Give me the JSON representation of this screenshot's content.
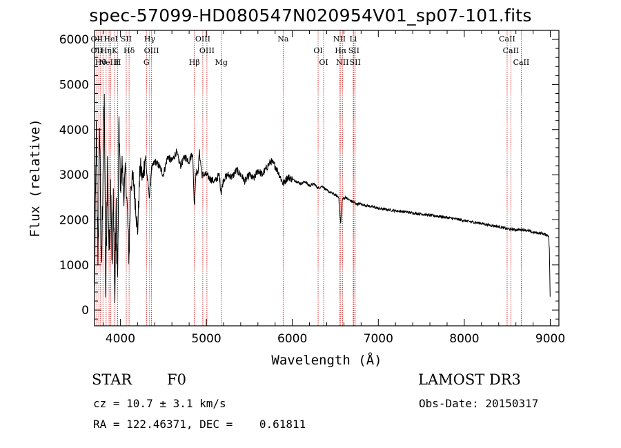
{
  "header": {
    "title": "spec-57099-HD080547N020954V01_sp07-101.fits"
  },
  "info": {
    "class": "STAR",
    "subclass": "F0",
    "survey": "LAMOST DR3",
    "cz": "cz = 10.7 ± 3.1 km/s",
    "obs_date": "Obs-Date: 20150317",
    "coords": "RA = 122.46371, DEC =    0.61811"
  },
  "colors": {
    "axis": "#000000",
    "spectrum": "#000000",
    "line_marker": "#cc0000"
  },
  "chart_data": {
    "type": "line",
    "title": "spec-57099-HD080547N020954V01_sp07-101.fits",
    "xlabel": "Wavelength (Å)",
    "ylabel": "Flux (relative)",
    "xlim": [
      3700,
      9100
    ],
    "ylim": [
      -350,
      6200
    ],
    "xticks": [
      4000,
      5000,
      6000,
      7000,
      8000,
      9000
    ],
    "yticks": [
      0,
      1000,
      2000,
      3000,
      4000,
      5000,
      6000
    ],
    "series": [
      {
        "name": "flux",
        "points": [
          [
            3700,
            300
          ],
          [
            3720,
            3900
          ],
          [
            3740,
            1200
          ],
          [
            3760,
            4100
          ],
          [
            3780,
            600
          ],
          [
            3800,
            3300
          ],
          [
            3815,
            4600
          ],
          [
            3830,
            200
          ],
          [
            3850,
            3200
          ],
          [
            3870,
            1200
          ],
          [
            3890,
            3100
          ],
          [
            3905,
            800
          ],
          [
            3920,
            2600
          ],
          [
            3935,
            100
          ],
          [
            3950,
            2200
          ],
          [
            3970,
            600
          ],
          [
            3985,
            4300
          ],
          [
            4000,
            2600
          ],
          [
            4020,
            3300
          ],
          [
            4040,
            2500
          ],
          [
            4060,
            3100
          ],
          [
            4080,
            2300
          ],
          [
            4101,
            1100
          ],
          [
            4120,
            2800
          ],
          [
            4150,
            2900
          ],
          [
            4180,
            2300
          ],
          [
            4200,
            1700
          ],
          [
            4230,
            3200
          ],
          [
            4260,
            2900
          ],
          [
            4290,
            3400
          ],
          [
            4320,
            2800
          ],
          [
            4340,
            2500
          ],
          [
            4360,
            3100
          ],
          [
            4400,
            3300
          ],
          [
            4450,
            3200
          ],
          [
            4500,
            3000
          ],
          [
            4550,
            3400
          ],
          [
            4600,
            3300
          ],
          [
            4650,
            3500
          ],
          [
            4700,
            3200
          ],
          [
            4750,
            3400
          ],
          [
            4800,
            3300
          ],
          [
            4840,
            3500
          ],
          [
            4861,
            2300
          ],
          [
            4880,
            3100
          ],
          [
            4900,
            3000
          ],
          [
            4920,
            3500
          ],
          [
            4950,
            3000
          ],
          [
            5000,
            3000
          ],
          [
            5050,
            2900
          ],
          [
            5100,
            2850
          ],
          [
            5150,
            3000
          ],
          [
            5172,
            2600
          ],
          [
            5200,
            2900
          ],
          [
            5250,
            3000
          ],
          [
            5300,
            2950
          ],
          [
            5350,
            3100
          ],
          [
            5400,
            3000
          ],
          [
            5450,
            2850
          ],
          [
            5500,
            3000
          ],
          [
            5550,
            2900
          ],
          [
            5600,
            3100
          ],
          [
            5650,
            3000
          ],
          [
            5700,
            3150
          ],
          [
            5750,
            3300
          ],
          [
            5800,
            3200
          ],
          [
            5850,
            3000
          ],
          [
            5893,
            2800
          ],
          [
            5950,
            2950
          ],
          [
            6000,
            2900
          ],
          [
            6050,
            2850
          ],
          [
            6100,
            2800
          ],
          [
            6150,
            2850
          ],
          [
            6200,
            2750
          ],
          [
            6250,
            2800
          ],
          [
            6300,
            2700
          ],
          [
            6350,
            2750
          ],
          [
            6400,
            2650
          ],
          [
            6450,
            2600
          ],
          [
            6500,
            2550
          ],
          [
            6540,
            2500
          ],
          [
            6563,
            1900
          ],
          [
            6580,
            2450
          ],
          [
            6620,
            2500
          ],
          [
            6650,
            2450
          ],
          [
            6700,
            2400
          ],
          [
            6750,
            2350
          ],
          [
            6800,
            2350
          ],
          [
            6850,
            2320
          ],
          [
            6900,
            2300
          ],
          [
            6950,
            2280
          ],
          [
            7000,
            2250
          ],
          [
            7100,
            2230
          ],
          [
            7200,
            2200
          ],
          [
            7300,
            2180
          ],
          [
            7400,
            2150
          ],
          [
            7500,
            2130
          ],
          [
            7600,
            2100
          ],
          [
            7700,
            2080
          ],
          [
            7800,
            2050
          ],
          [
            7900,
            2020
          ],
          [
            8000,
            1980
          ],
          [
            8100,
            1950
          ],
          [
            8200,
            1920
          ],
          [
            8300,
            1880
          ],
          [
            8400,
            1850
          ],
          [
            8500,
            1800
          ],
          [
            8600,
            1780
          ],
          [
            8700,
            1780
          ],
          [
            8800,
            1720
          ],
          [
            8900,
            1700
          ],
          [
            8980,
            1650
          ],
          [
            8990,
            1300
          ],
          [
            9000,
            20
          ]
        ]
      }
    ],
    "line_markers": [
      {
        "wavelength": 3727,
        "labels": [
          "OII",
          "OII"
        ]
      },
      {
        "wavelength": 3750,
        "labels": [
          ""
        ]
      },
      {
        "wavelength": 3771,
        "labels": [
          "Hθ"
        ]
      },
      {
        "wavelength": 3798,
        "labels": [
          ""
        ]
      },
      {
        "wavelength": 3835,
        "labels": [
          "Hη"
        ]
      },
      {
        "wavelength": 3869,
        "labels": [
          "NeIII"
        ]
      },
      {
        "wavelength": 3889,
        "labels": [
          "HeI"
        ]
      },
      {
        "wavelength": 3934,
        "labels": [
          "K"
        ]
      },
      {
        "wavelength": 3969,
        "labels": [
          "H"
        ]
      },
      {
        "wavelength": 4069,
        "labels": [
          "SII"
        ]
      },
      {
        "wavelength": 4102,
        "labels": [
          "Hδ"
        ]
      },
      {
        "wavelength": 4304,
        "labels": [
          "G"
        ]
      },
      {
        "wavelength": 4341,
        "labels": [
          "Hγ"
        ]
      },
      {
        "wavelength": 4363,
        "labels": [
          "OIII"
        ]
      },
      {
        "wavelength": 4861,
        "labels": [
          "Hβ"
        ]
      },
      {
        "wavelength": 4959,
        "labels": [
          "OIII"
        ]
      },
      {
        "wavelength": 5007,
        "labels": [
          "OIII"
        ]
      },
      {
        "wavelength": 5175,
        "labels": [
          "Mg"
        ]
      },
      {
        "wavelength": 5893,
        "labels": [
          "Na"
        ]
      },
      {
        "wavelength": 6300,
        "labels": [
          "OI"
        ]
      },
      {
        "wavelength": 6364,
        "labels": [
          "OI"
        ]
      },
      {
        "wavelength": 6548,
        "labels": [
          "NII"
        ]
      },
      {
        "wavelength": 6563,
        "labels": [
          "Hα"
        ]
      },
      {
        "wavelength": 6583,
        "labels": [
          "NII"
        ]
      },
      {
        "wavelength": 6708,
        "labels": [
          "Li"
        ]
      },
      {
        "wavelength": 6716,
        "labels": [
          "SII"
        ]
      },
      {
        "wavelength": 6731,
        "labels": [
          "SII"
        ]
      },
      {
        "wavelength": 8498,
        "labels": [
          "CaII"
        ]
      },
      {
        "wavelength": 8542,
        "labels": [
          "CaII"
        ]
      },
      {
        "wavelength": 8662,
        "labels": [
          "CaII"
        ]
      }
    ]
  }
}
